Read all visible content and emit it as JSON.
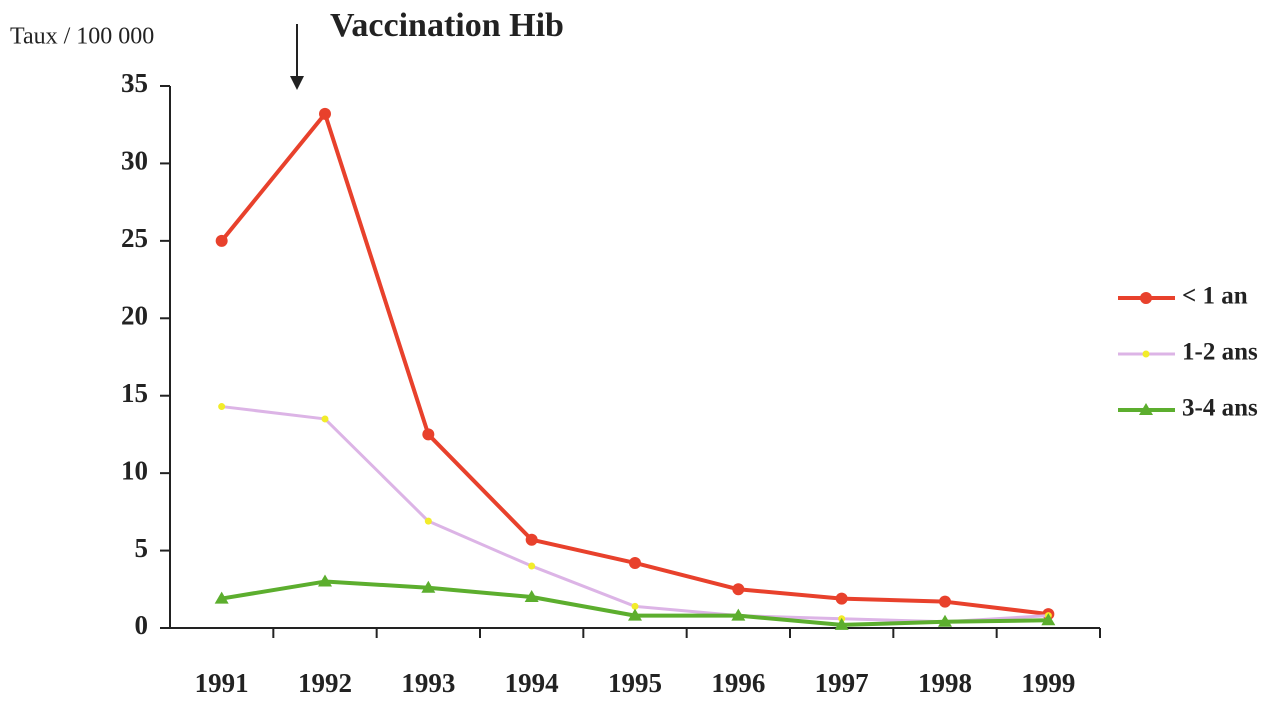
{
  "chart_data": {
    "type": "line",
    "title": "Vaccination Hib",
    "y_label": "Taux / 100 000",
    "categories": [
      "1991",
      "1992",
      "1993",
      "1994",
      "1995",
      "1996",
      "1997",
      "1998",
      "1999"
    ],
    "series": [
      {
        "name": "< 1 an",
        "color": "#e8412c",
        "marker": "circle",
        "values": [
          25,
          33.2,
          12.5,
          5.7,
          4.2,
          2.5,
          1.9,
          1.7,
          0.9
        ]
      },
      {
        "name": "1-2 ans",
        "color": "#dcb4e6",
        "marker": "dot",
        "values": [
          14.3,
          13.5,
          6.9,
          4.0,
          1.4,
          0.8,
          0.6,
          0.4,
          0.8
        ]
      },
      {
        "name": "3-4 ans",
        "color": "#5cae2e",
        "marker": "triangle",
        "values": [
          1.9,
          3.0,
          2.6,
          2.0,
          0.8,
          0.8,
          0.2,
          0.4,
          0.5
        ]
      }
    ],
    "ylim": [
      0,
      35
    ],
    "yticks": [
      0,
      5,
      10,
      15,
      20,
      25,
      30,
      35
    ]
  }
}
